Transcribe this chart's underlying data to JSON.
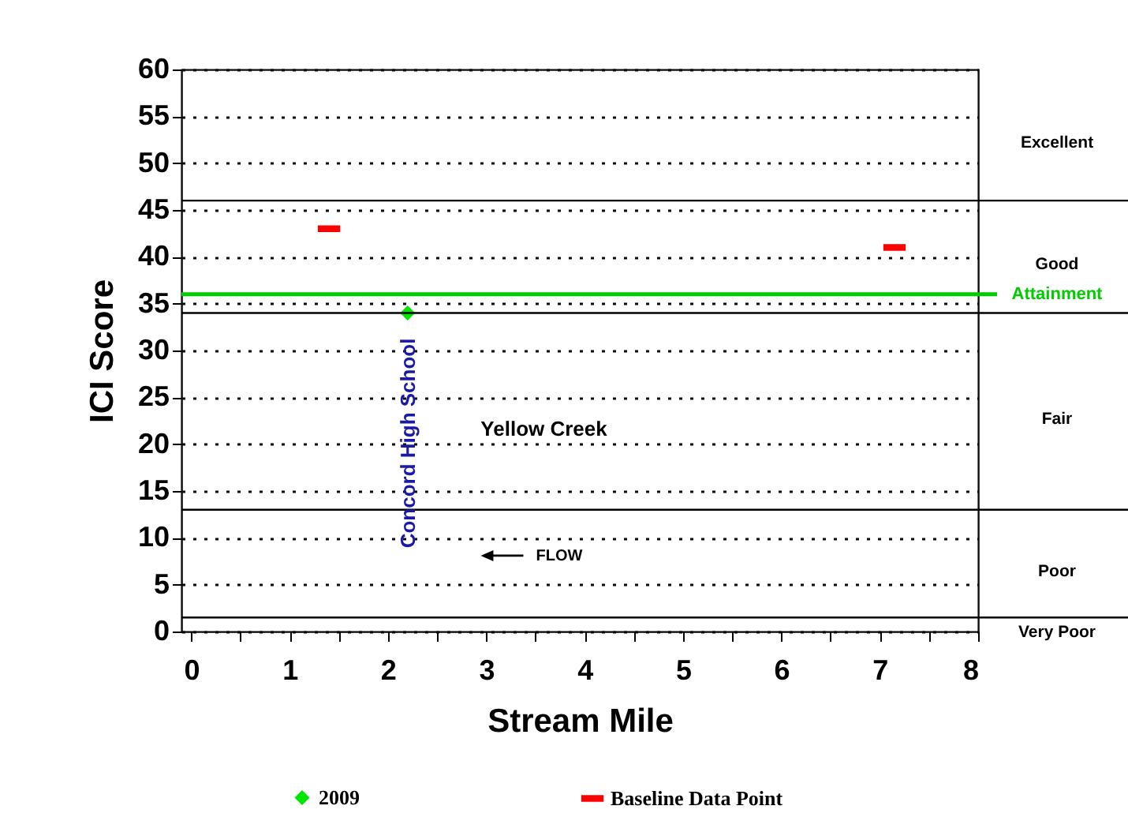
{
  "chart_data": {
    "type": "scatter",
    "xlabel": "Stream Mile",
    "ylabel": "ICI Score",
    "xlim": [
      -0.1,
      8
    ],
    "ylim": [
      0,
      60
    ],
    "xticks": [
      0,
      {
        "value": 0.5,
        "label": null
      },
      1,
      {
        "value": 1.5,
        "label": null
      },
      2,
      {
        "value": 2.5,
        "label": null
      },
      3,
      {
        "value": 3.5,
        "label": null
      },
      4,
      {
        "value": 4.5,
        "label": null
      },
      5,
      {
        "value": 5.5,
        "label": null
      },
      6,
      {
        "value": 6.5,
        "label": null
      },
      7,
      {
        "value": 7.5,
        "label": null
      },
      8
    ],
    "yticks": [
      0,
      5,
      10,
      15,
      20,
      25,
      30,
      35,
      40,
      45,
      50,
      55,
      60
    ],
    "grid": "y",
    "legend": "bottom",
    "series": [
      {
        "name": "2009",
        "color": "#00e600",
        "marker": "diamond",
        "x": [
          2.2
        ],
        "values": [
          34
        ]
      },
      {
        "name": "Baseline Data Point",
        "color": "#ff0000",
        "x": [
          1.4,
          7.15
        ],
        "values": [
          43,
          41
        ]
      }
    ],
    "bands": [
      {
        "axis": "y",
        "from": 46,
        "to": 60,
        "label": "Excellent",
        "color": "#ffffff"
      },
      {
        "axis": "y",
        "from": 34,
        "to": 46,
        "label": "Good",
        "color": "#ffffff"
      },
      {
        "axis": "y",
        "from": 13,
        "to": 34,
        "label": "Fair",
        "color": "#ffffff"
      },
      {
        "axis": "y",
        "from": 1.5,
        "to": 13,
        "label": "Poor",
        "color": "#ffffff"
      },
      {
        "axis": "y",
        "from": 0,
        "to": 1.5,
        "label": "Very Poor",
        "color": "#ffffff"
      }
    ],
    "ref_lines": [
      {
        "axis": "y",
        "value": 36,
        "label": "Attainment",
        "color": "#00cc00"
      }
    ],
    "annotations": [
      "Concord High School",
      "Yellow Creek",
      "FLOW"
    ]
  }
}
